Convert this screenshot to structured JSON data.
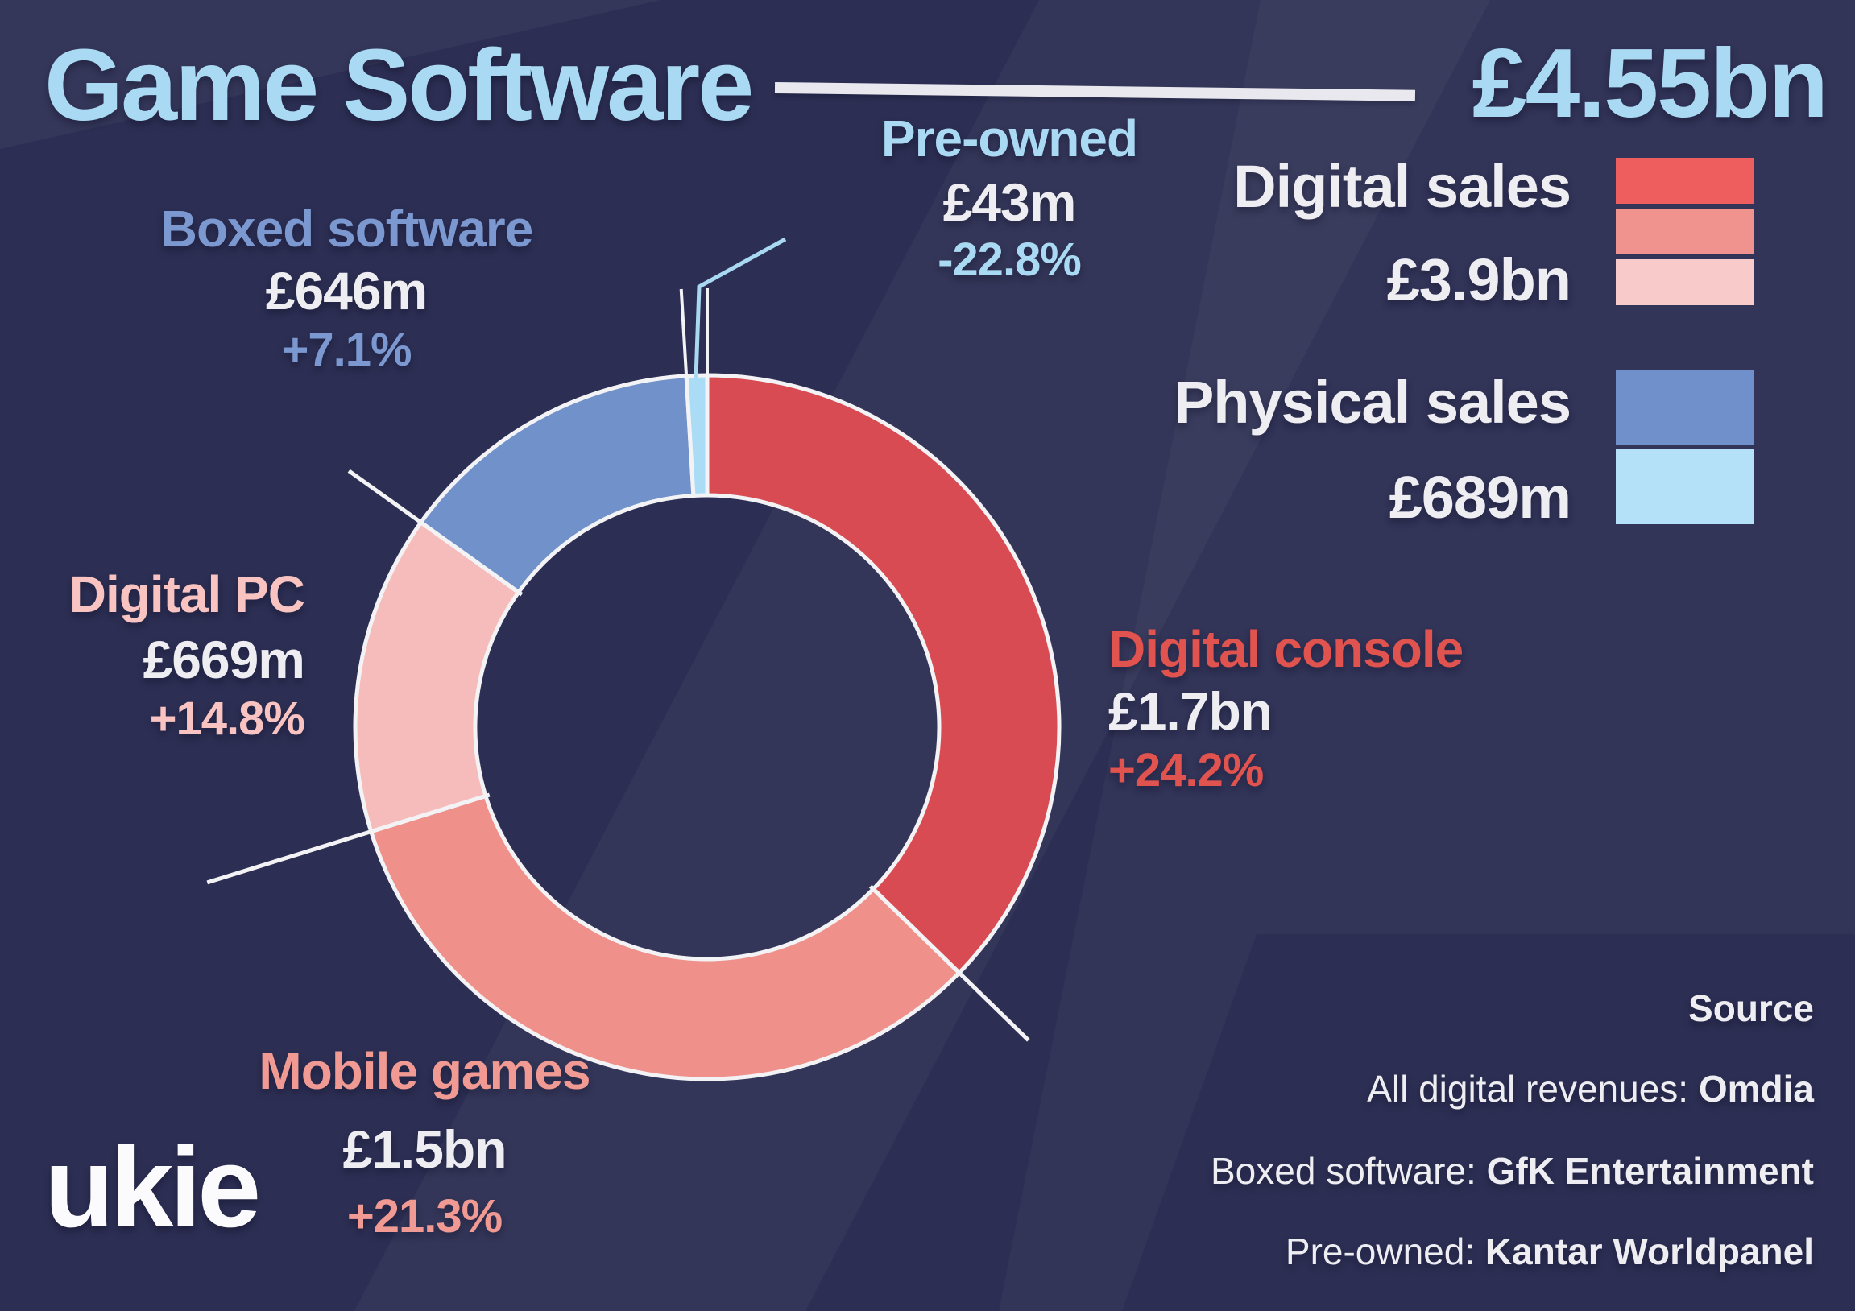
{
  "title": "Game Software",
  "total": "£4.55bn",
  "logo": "ukie",
  "colors": {
    "background": "#2c2e53",
    "title_blue": "#a9d9f3",
    "white": "#ededf2",
    "red": "#e0534f",
    "salmon": "#f09a93",
    "pink": "#f8c3c0",
    "mid_blue": "#7b98d0",
    "light_blue": "#a9d9f3"
  },
  "legend": {
    "digital": {
      "label": "Digital sales",
      "value": "£3.9bn",
      "swatches": [
        "#ee5e5f",
        "#f0928d",
        "#f8caca"
      ]
    },
    "physical": {
      "label": "Physical  sales",
      "value": "£689m",
      "swatches": [
        "#6f90ca",
        "#b4e1f8"
      ]
    }
  },
  "callouts": {
    "preowned": {
      "label": "Pre-owned",
      "value": "£43m",
      "change": "-22.8%"
    },
    "boxed": {
      "label": "Boxed software",
      "value": "£646m",
      "change": "+7.1%"
    },
    "digital_pc": {
      "label": "Digital PC",
      "value": "£669m",
      "change": "+14.8%"
    },
    "mobile": {
      "label": "Mobile games",
      "value": "£1.5bn",
      "change": "+21.3%"
    },
    "console": {
      "label": "Digital console",
      "value": "£1.7bn",
      "change": "+24.2%"
    }
  },
  "source": {
    "heading": "Source",
    "rows": [
      {
        "label": "All digital revenues: ",
        "value": "Omdia"
      },
      {
        "label": "Boxed software:  ",
        "value": "GfK Entertainment"
      },
      {
        "label": "Pre-owned:  ",
        "value": "Kantar Worldpanel"
      }
    ]
  },
  "chart_data": {
    "type": "pie",
    "subtype": "donut",
    "title": "Game Software",
    "total_display": "£4.55bn",
    "currency": "GBP",
    "direction": "clockwise",
    "start_angle_deg": 0,
    "legend_position": "right",
    "segments": [
      {
        "name": "Digital console",
        "value_bn": 1.7,
        "display": "£1.7bn",
        "change_yoy": "+24.2%",
        "color": "#d94b52",
        "group": "Digital sales"
      },
      {
        "name": "Mobile games",
        "value_bn": 1.5,
        "display": "£1.5bn",
        "change_yoy": "+21.3%",
        "color": "#ef908b",
        "group": "Digital sales"
      },
      {
        "name": "Digital PC",
        "value_bn": 0.669,
        "display": "£669m",
        "change_yoy": "+14.8%",
        "color": "#f6bcbb",
        "group": "Digital sales"
      },
      {
        "name": "Boxed software",
        "value_bn": 0.646,
        "display": "£646m",
        "change_yoy": "+7.1%",
        "color": "#7191ca",
        "group": "Physical sales"
      },
      {
        "name": "Pre-owned",
        "value_bn": 0.043,
        "display": "£43m",
        "change_yoy": "-22.8%",
        "color": "#aadcf5",
        "group": "Physical sales"
      }
    ],
    "groups": [
      {
        "name": "Digital sales",
        "display": "£3.9bn",
        "colors": [
          "#ee5e5f",
          "#f0928d",
          "#f8caca"
        ]
      },
      {
        "name": "Physical sales",
        "display": "£689m",
        "colors": [
          "#6f90ca",
          "#b4e1f8"
        ]
      }
    ]
  }
}
